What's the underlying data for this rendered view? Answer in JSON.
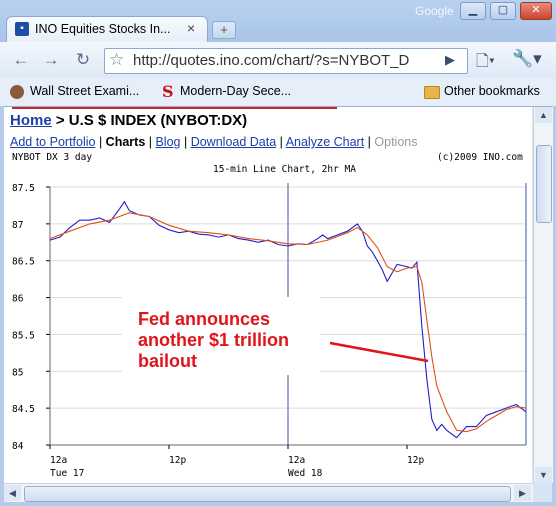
{
  "browser": {
    "tab_title": "INO Equities Stocks In...",
    "tab_close": "×",
    "new_tab": "+",
    "brand": "Google",
    "url": "http://quotes.ino.com/chart/?s=NYBOT_D",
    "icons": {
      "back": "back-arrow-icon",
      "forward": "forward-arrow-icon",
      "reload": "reload-icon",
      "star": "star-icon",
      "go": "go-arrow-icon",
      "page_menu": "page-menu-icon",
      "wrench": "wrench-icon"
    },
    "bookmarks": [
      {
        "label": "Wall Street Exami...",
        "icon": "avatar-icon"
      },
      {
        "label": "Modern-Day Sece...",
        "icon": "s-logo-icon"
      }
    ],
    "other_bookmarks": "Other bookmarks"
  },
  "page": {
    "breadcrumb_home": "Home",
    "breadcrumb_sep": " > ",
    "breadcrumb_title": "U.S $ INDEX (NYBOT:DX)",
    "links": {
      "portfolio": "Add to Portfolio",
      "charts": "Charts",
      "blog": "Blog",
      "download": "Download Data",
      "analyze": "Analyze Chart",
      "options": "Options",
      "sep": " | "
    },
    "accent_color": "#c1272d",
    "link_color": "#1b3fa5"
  },
  "chart_data": {
    "type": "line",
    "title": "15-min Line Chart, 2hr MA",
    "header_left": "NYBOT DX 3 day",
    "header_right": "(c)2009 INO.com",
    "ylim": [
      84,
      87.5
    ],
    "yticks": [
      "87.5",
      "87",
      "86.5",
      "86",
      "85.5",
      "85",
      "84.5",
      "84"
    ],
    "xtick_labels": [
      {
        "top": "12a",
        "bottom": "Tue 17",
        "x": 0
      },
      {
        "top": "12p",
        "bottom": "",
        "x": 12
      },
      {
        "top": "12a",
        "bottom": "Wed 18",
        "x": 24
      },
      {
        "top": "12p",
        "bottom": "",
        "x": 36
      }
    ],
    "day_dividers_x": [
      24,
      48
    ],
    "xlim": [
      0,
      48
    ],
    "annotation": [
      "Fed announces",
      "another $1 trillion",
      "bailout"
    ],
    "annotation_color": "#e0141b",
    "series": [
      {
        "name": "",
        "color": "#2020c8",
        "x": [
          0,
          1,
          2,
          3,
          4,
          5,
          6,
          7,
          7.5,
          8,
          9,
          10,
          11,
          12,
          13,
          14,
          15,
          16,
          17,
          18,
          19,
          20,
          21,
          22,
          23,
          24,
          25,
          26,
          27,
          27.5,
          28,
          29,
          30,
          31,
          31.5,
          32,
          32.5,
          33,
          33.5,
          34,
          35,
          36,
          36.5,
          37,
          37.5,
          38,
          38.5,
          39,
          39.5,
          40,
          41,
          42,
          43,
          44,
          45,
          46,
          47,
          48
        ],
        "y": [
          86.78,
          86.82,
          86.95,
          87.05,
          87.05,
          87.08,
          87.02,
          87.2,
          87.3,
          87.18,
          87.12,
          87.1,
          86.98,
          86.92,
          86.88,
          86.9,
          86.86,
          86.85,
          86.82,
          86.85,
          86.8,
          86.78,
          86.75,
          86.78,
          86.72,
          86.7,
          86.73,
          86.72,
          86.8,
          86.85,
          86.8,
          86.85,
          86.9,
          87.0,
          86.9,
          86.7,
          86.62,
          86.5,
          86.38,
          86.22,
          86.45,
          86.42,
          86.4,
          86.48,
          85.6,
          84.9,
          84.35,
          84.2,
          84.28,
          84.2,
          84.1,
          84.25,
          84.25,
          84.4,
          84.45,
          84.5,
          84.55,
          84.45
        ]
      },
      {
        "name": "",
        "color": "#e0501a",
        "x": [
          0,
          2,
          4,
          6,
          8,
          10,
          12,
          14,
          16,
          18,
          20,
          22,
          24,
          26,
          28,
          30,
          31,
          32,
          33,
          34,
          35,
          36,
          37,
          37.5,
          38,
          38.5,
          39,
          40,
          41,
          42,
          43,
          44,
          45,
          46,
          47,
          48
        ],
        "y": [
          86.8,
          86.9,
          87.0,
          87.05,
          87.15,
          87.1,
          86.98,
          86.9,
          86.88,
          86.85,
          86.8,
          86.77,
          86.73,
          86.72,
          86.78,
          86.88,
          86.95,
          86.85,
          86.68,
          86.42,
          86.35,
          86.4,
          86.42,
          86.2,
          85.7,
          85.2,
          84.8,
          84.45,
          84.2,
          84.18,
          84.22,
          84.32,
          84.4,
          84.48,
          84.52,
          84.5
        ]
      }
    ]
  }
}
